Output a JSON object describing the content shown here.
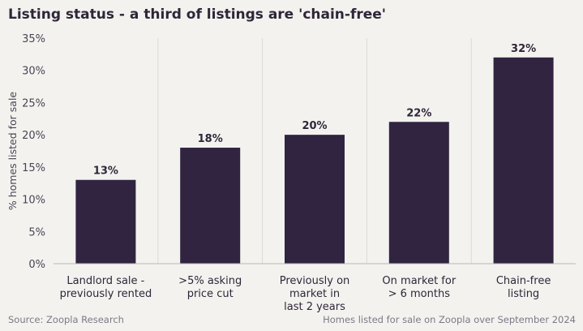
{
  "chart_data": {
    "type": "bar",
    "title": "Listing status - a third of listings are 'chain-free'",
    "ylabel": "% homes listed for sale",
    "xlabel": "",
    "ylim": [
      0,
      35
    ],
    "yticks": [
      "0%",
      "5%",
      "10%",
      "15%",
      "20%",
      "25%",
      "30%",
      "35%"
    ],
    "categories": [
      [
        "Landlord sale -",
        "previously rented"
      ],
      [
        ">5% asking",
        "price cut"
      ],
      [
        "Previously on",
        "market in",
        "last 2 years"
      ],
      [
        "On market for",
        "> 6 months"
      ],
      [
        "Chain-free",
        "listing"
      ]
    ],
    "values": [
      13,
      18,
      20,
      22,
      32
    ],
    "data_labels": [
      "13%",
      "18%",
      "20%",
      "22%",
      "32%"
    ],
    "bar_color": "#302440",
    "grid": false
  },
  "footer": {
    "source": "Source: Zoopla Research",
    "note": "Homes listed for sale on Zoopla over September 2024"
  }
}
